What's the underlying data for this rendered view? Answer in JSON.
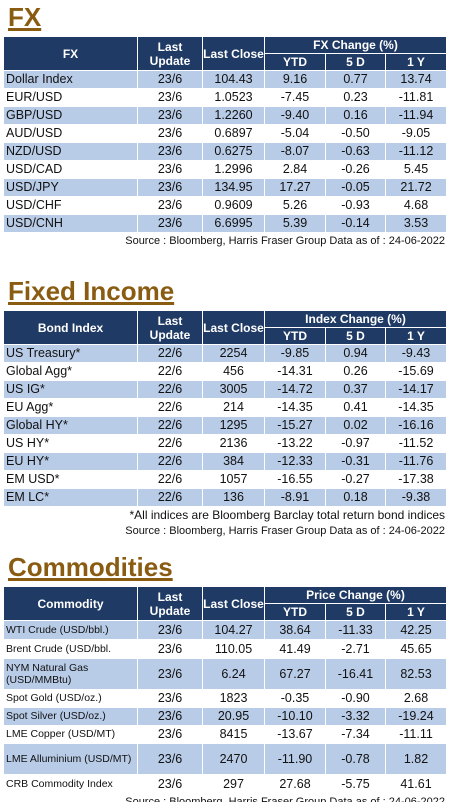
{
  "fx": {
    "title": "FX",
    "headers": {
      "name": "FX",
      "last_update": "Last Update",
      "last_close": "Last Close",
      "group": "FX Change (%)",
      "ytd": "YTD",
      "d5": "5 D",
      "y1": "1 Y"
    },
    "rows": [
      {
        "name": "Dollar Index",
        "update": "23/6",
        "close": "104.43",
        "ytd": "9.16",
        "d5": "0.77",
        "y1": "13.74"
      },
      {
        "name": "EUR/USD",
        "update": "23/6",
        "close": "1.0523",
        "ytd": "-7.45",
        "d5": "0.23",
        "y1": "-11.81"
      },
      {
        "name": "GBP/USD",
        "update": "23/6",
        "close": "1.2260",
        "ytd": "-9.40",
        "d5": "0.16",
        "y1": "-11.94"
      },
      {
        "name": "AUD/USD",
        "update": "23/6",
        "close": "0.6897",
        "ytd": "-5.04",
        "d5": "-0.50",
        "y1": "-9.05"
      },
      {
        "name": "NZD/USD",
        "update": "23/6",
        "close": "0.6275",
        "ytd": "-8.07",
        "d5": "-0.63",
        "y1": "-11.12"
      },
      {
        "name": "USD/CAD",
        "update": "23/6",
        "close": "1.2996",
        "ytd": "2.84",
        "d5": "-0.26",
        "y1": "5.45"
      },
      {
        "name": "USD/JPY",
        "update": "23/6",
        "close": "134.95",
        "ytd": "17.27",
        "d5": "-0.05",
        "y1": "21.72"
      },
      {
        "name": "USD/CHF",
        "update": "23/6",
        "close": "0.9609",
        "ytd": "5.26",
        "d5": "-0.93",
        "y1": "4.68"
      },
      {
        "name": "USD/CNH",
        "update": "23/6",
        "close": "6.6995",
        "ytd": "5.39",
        "d5": "-0.14",
        "y1": "3.53"
      }
    ],
    "source": "Source : Bloomberg, Harris Fraser Group Data as of : 24-06-2022"
  },
  "fixed_income": {
    "title": "Fixed Income",
    "headers": {
      "name": "Bond Index",
      "last_update": "Last Update",
      "last_close": "Last Close",
      "group": "Index Change (%)",
      "ytd": "YTD",
      "d5": "5 D",
      "y1": "1 Y"
    },
    "rows": [
      {
        "name": "US Treasury*",
        "update": "22/6",
        "close": "2254",
        "ytd": "-9.85",
        "d5": "0.94",
        "y1": "-9.43"
      },
      {
        "name": "Global Agg*",
        "update": "22/6",
        "close": "456",
        "ytd": "-14.31",
        "d5": "0.26",
        "y1": "-15.69"
      },
      {
        "name": "US IG*",
        "update": "22/6",
        "close": "3005",
        "ytd": "-14.72",
        "d5": "0.37",
        "y1": "-14.17"
      },
      {
        "name": "EU Agg*",
        "update": "22/6",
        "close": "214",
        "ytd": "-14.35",
        "d5": "0.41",
        "y1": "-14.35"
      },
      {
        "name": "Global HY*",
        "update": "22/6",
        "close": "1295",
        "ytd": "-15.27",
        "d5": "0.02",
        "y1": "-16.16"
      },
      {
        "name": "US HY*",
        "update": "22/6",
        "close": "2136",
        "ytd": "-13.22",
        "d5": "-0.97",
        "y1": "-11.52"
      },
      {
        "name": "EU HY*",
        "update": "22/6",
        "close": "384",
        "ytd": "-12.33",
        "d5": "-0.31",
        "y1": "-11.76"
      },
      {
        "name": "EM USD*",
        "update": "22/6",
        "close": "1057",
        "ytd": "-16.55",
        "d5": "-0.27",
        "y1": "-17.38"
      },
      {
        "name": "EM LC*",
        "update": "22/6",
        "close": "136",
        "ytd": "-8.91",
        "d5": "0.18",
        "y1": "-9.38"
      }
    ],
    "note": "*All indices are Bloomberg Barclay total return bond indices",
    "source": "Source : Bloomberg, Harris Fraser Group Data as of : 24-06-2022"
  },
  "commodities": {
    "title": "Commodities",
    "headers": {
      "name": "Commodity",
      "last_update": "Last Update",
      "last_close": "Last Close",
      "group": "Price Change (%)",
      "ytd": "YTD",
      "d5": "5 D",
      "y1": "1 Y"
    },
    "rows": [
      {
        "name": "WTI Crude (USD/bbl.)",
        "update": "23/6",
        "close": "104.27",
        "ytd": "38.64",
        "d5": "-11.33",
        "y1": "42.25"
      },
      {
        "name": "Brent Crude (USD/bbl.",
        "update": "23/6",
        "close": "110.05",
        "ytd": "41.49",
        "d5": "-2.71",
        "y1": "45.65"
      },
      {
        "name": "NYM Natural Gas (USD/MMBtu)",
        "update": "23/6",
        "close": "6.24",
        "ytd": "67.27",
        "d5": "-16.41",
        "y1": "82.53"
      },
      {
        "name": "Spot Gold (USD/oz.)",
        "update": "23/6",
        "close": "1823",
        "ytd": "-0.35",
        "d5": "-0.90",
        "y1": "2.68"
      },
      {
        "name": "Spot Silver  (USD/oz.)",
        "update": "23/6",
        "close": "20.95",
        "ytd": "-10.10",
        "d5": "-3.32",
        "y1": "-19.24"
      },
      {
        "name": "LME Copper  (USD/MT)",
        "update": "23/6",
        "close": "8415",
        "ytd": "-13.67",
        "d5": "-7.34",
        "y1": "-11.11"
      },
      {
        "name": "LME Alluminium (USD/MT)",
        "update": "23/6",
        "close": "2470",
        "ytd": "-11.90",
        "d5": "-0.78",
        "y1": "1.82"
      },
      {
        "name": "CRB Commodity Index",
        "update": "23/6",
        "close": "297",
        "ytd": "27.68",
        "d5": "-5.75",
        "y1": "41.61"
      }
    ],
    "source": "Source : Bloomberg, Harris Fraser Group Data as of : 24-06-2022"
  }
}
